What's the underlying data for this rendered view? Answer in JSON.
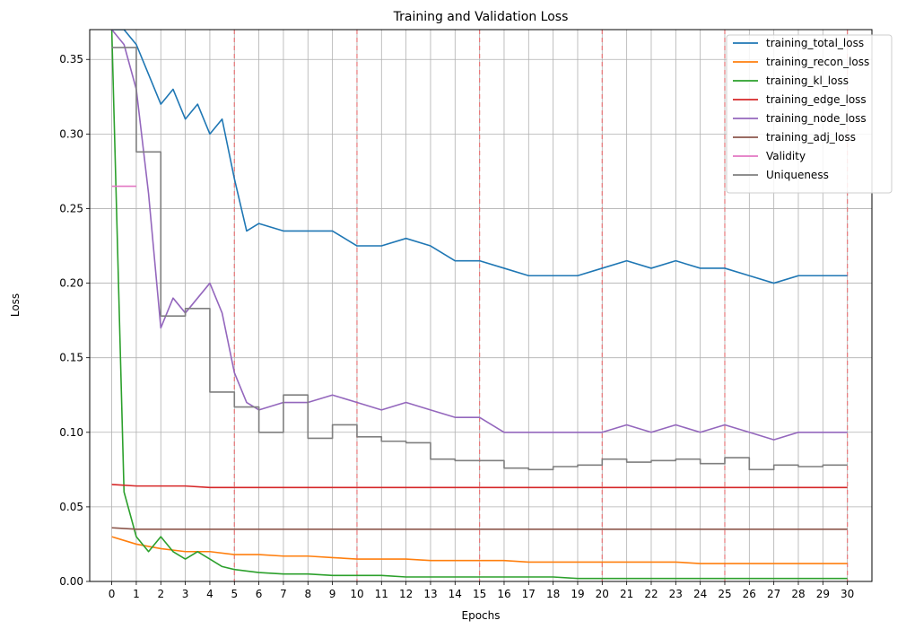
{
  "chart_data": {
    "type": "line",
    "title": "Training and Validation Loss",
    "xlabel": "Epochs",
    "ylabel": "Loss",
    "xlim": [
      -0.9,
      31.0
    ],
    "ylim": [
      0.0,
      0.37
    ],
    "x_ticks": [
      0,
      1,
      2,
      3,
      4,
      5,
      6,
      7,
      8,
      9,
      10,
      11,
      12,
      13,
      14,
      15,
      16,
      17,
      18,
      19,
      20,
      21,
      22,
      23,
      24,
      25,
      26,
      27,
      28,
      29,
      30
    ],
    "y_ticks": [
      0.0,
      0.05,
      0.1,
      0.15,
      0.2,
      0.25,
      0.3,
      0.35
    ],
    "y_tick_labels": [
      "0.00",
      "0.05",
      "0.10",
      "0.15",
      "0.20",
      "0.25",
      "0.30",
      "0.35"
    ],
    "grid": true,
    "legend_position": "top-right",
    "epoch_markers": [
      5,
      10,
      15,
      20,
      25,
      30
    ],
    "series": [
      {
        "name": "training_total_loss",
        "color": "#1f77b4",
        "x": [
          0.0,
          0.5,
          1.0,
          1.5,
          2.0,
          2.5,
          3.0,
          3.5,
          4.0,
          4.5,
          5.0,
          5.5,
          6.0,
          7.0,
          8.0,
          9.0,
          10.0,
          11.0,
          12.0,
          13.0,
          14.0,
          15.0,
          16.0,
          17.0,
          18.0,
          19.0,
          20.0,
          21.0,
          22.0,
          23.0,
          24.0,
          25.0,
          26.0,
          27.0,
          28.0,
          29.0,
          30.0
        ],
        "y": [
          0.37,
          0.37,
          0.36,
          0.34,
          0.32,
          0.33,
          0.31,
          0.32,
          0.3,
          0.31,
          0.27,
          0.235,
          0.24,
          0.235,
          0.235,
          0.235,
          0.225,
          0.225,
          0.23,
          0.225,
          0.215,
          0.215,
          0.21,
          0.205,
          0.205,
          0.205,
          0.21,
          0.215,
          0.21,
          0.215,
          0.21,
          0.21,
          0.205,
          0.2,
          0.205,
          0.205,
          0.205
        ]
      },
      {
        "name": "training_recon_loss",
        "color": "#ff7f0e",
        "x": [
          0.0,
          1.0,
          2.0,
          3.0,
          4.0,
          5.0,
          6.0,
          7.0,
          8.0,
          9.0,
          10.0,
          11.0,
          12.0,
          13.0,
          14.0,
          15.0,
          16.0,
          17.0,
          18.0,
          19.0,
          20.0,
          21.0,
          22.0,
          23.0,
          24.0,
          25.0,
          26.0,
          27.0,
          28.0,
          29.0,
          30.0
        ],
        "y": [
          0.03,
          0.025,
          0.022,
          0.02,
          0.02,
          0.018,
          0.018,
          0.017,
          0.017,
          0.016,
          0.015,
          0.015,
          0.015,
          0.014,
          0.014,
          0.014,
          0.014,
          0.013,
          0.013,
          0.013,
          0.013,
          0.013,
          0.013,
          0.013,
          0.012,
          0.012,
          0.012,
          0.012,
          0.012,
          0.012,
          0.012
        ]
      },
      {
        "name": "training_kl_loss",
        "color": "#2ca02c",
        "x": [
          0.0,
          0.5,
          1.0,
          1.5,
          2.0,
          2.5,
          3.0,
          3.5,
          4.0,
          4.5,
          5.0,
          6.0,
          7.0,
          8.0,
          9.0,
          10.0,
          11.0,
          12.0,
          13.0,
          14.0,
          15.0,
          16.0,
          17.0,
          18.0,
          19.0,
          20.0,
          21.0,
          22.0,
          23.0,
          24.0,
          25.0,
          26.0,
          27.0,
          28.0,
          29.0,
          30.0
        ],
        "y": [
          0.37,
          0.06,
          0.03,
          0.02,
          0.03,
          0.02,
          0.015,
          0.02,
          0.015,
          0.01,
          0.008,
          0.006,
          0.005,
          0.005,
          0.004,
          0.004,
          0.004,
          0.003,
          0.003,
          0.003,
          0.003,
          0.003,
          0.003,
          0.003,
          0.002,
          0.002,
          0.002,
          0.002,
          0.002,
          0.002,
          0.002,
          0.002,
          0.002,
          0.002,
          0.002,
          0.002
        ]
      },
      {
        "name": "training_edge_loss",
        "color": "#d62728",
        "x": [
          0.0,
          1.0,
          2.0,
          3.0,
          4.0,
          5.0,
          6.0,
          7.0,
          8.0,
          9.0,
          10.0,
          11.0,
          12.0,
          13.0,
          14.0,
          15.0,
          16.0,
          17.0,
          18.0,
          19.0,
          20.0,
          21.0,
          22.0,
          23.0,
          24.0,
          25.0,
          26.0,
          27.0,
          28.0,
          29.0,
          30.0
        ],
        "y": [
          0.065,
          0.064,
          0.064,
          0.064,
          0.063,
          0.063,
          0.063,
          0.063,
          0.063,
          0.063,
          0.063,
          0.063,
          0.063,
          0.063,
          0.063,
          0.063,
          0.063,
          0.063,
          0.063,
          0.063,
          0.063,
          0.063,
          0.063,
          0.063,
          0.063,
          0.063,
          0.063,
          0.063,
          0.063,
          0.063,
          0.063
        ]
      },
      {
        "name": "training_node_loss",
        "color": "#9467bd",
        "x": [
          0.0,
          0.5,
          1.0,
          1.5,
          2.0,
          2.5,
          3.0,
          3.5,
          4.0,
          4.5,
          5.0,
          5.5,
          6.0,
          7.0,
          8.0,
          9.0,
          10.0,
          11.0,
          12.0,
          13.0,
          14.0,
          15.0,
          16.0,
          17.0,
          18.0,
          19.0,
          20.0,
          21.0,
          22.0,
          23.0,
          24.0,
          25.0,
          26.0,
          27.0,
          28.0,
          29.0,
          30.0
        ],
        "y": [
          0.37,
          0.36,
          0.33,
          0.26,
          0.17,
          0.19,
          0.18,
          0.19,
          0.2,
          0.18,
          0.14,
          0.12,
          0.115,
          0.12,
          0.12,
          0.125,
          0.12,
          0.115,
          0.12,
          0.115,
          0.11,
          0.11,
          0.1,
          0.1,
          0.1,
          0.1,
          0.1,
          0.105,
          0.1,
          0.105,
          0.1,
          0.105,
          0.1,
          0.095,
          0.1,
          0.1,
          0.1
        ]
      },
      {
        "name": "training_adj_loss",
        "color": "#8c564b",
        "x": [
          0.0,
          1.0,
          2.0,
          3.0,
          4.0,
          5.0,
          6.0,
          7.0,
          8.0,
          9.0,
          10.0,
          11.0,
          12.0,
          13.0,
          14.0,
          15.0,
          16.0,
          17.0,
          18.0,
          19.0,
          20.0,
          21.0,
          22.0,
          23.0,
          24.0,
          25.0,
          26.0,
          27.0,
          28.0,
          29.0,
          30.0
        ],
        "y": [
          0.036,
          0.035,
          0.035,
          0.035,
          0.035,
          0.035,
          0.035,
          0.035,
          0.035,
          0.035,
          0.035,
          0.035,
          0.035,
          0.035,
          0.035,
          0.035,
          0.035,
          0.035,
          0.035,
          0.035,
          0.035,
          0.035,
          0.035,
          0.035,
          0.035,
          0.035,
          0.035,
          0.035,
          0.035,
          0.035,
          0.035
        ]
      },
      {
        "name": "Validity",
        "color": "#e377c2",
        "x": [
          0.0,
          0.5,
          0.5,
          1.0
        ],
        "y": [
          0.265,
          0.265,
          0.265,
          0.265
        ]
      },
      {
        "name": "Uniqueness",
        "color": "#7f7f7f",
        "x": [
          0.0,
          0.5,
          0.5,
          1.0,
          1.0,
          2.0,
          2.0,
          3.0,
          3.0,
          4.0,
          4.0,
          5.0,
          5.0,
          6.0,
          6.0,
          7.0,
          7.0,
          8.0,
          8.0,
          9.0,
          9.0,
          10.0,
          10.0,
          11.0,
          11.0,
          12.0,
          12.0,
          13.0,
          13.0,
          14.0,
          14.0,
          15.0,
          15.0,
          16.0,
          16.0,
          17.0,
          17.0,
          18.0,
          18.0,
          19.0,
          19.0,
          20.0,
          20.0,
          21.0,
          21.0,
          22.0,
          22.0,
          23.0,
          23.0,
          24.0,
          24.0,
          25.0,
          25.0,
          26.0,
          26.0,
          27.0,
          27.0,
          28.0,
          28.0,
          29.0,
          29.0,
          30.0
        ],
        "y": [
          0.358,
          0.358,
          0.358,
          0.358,
          0.288,
          0.288,
          0.178,
          0.178,
          0.183,
          0.183,
          0.127,
          0.127,
          0.117,
          0.117,
          0.1,
          0.1,
          0.125,
          0.125,
          0.096,
          0.096,
          0.105,
          0.105,
          0.097,
          0.097,
          0.094,
          0.094,
          0.093,
          0.093,
          0.082,
          0.082,
          0.081,
          0.081,
          0.081,
          0.081,
          0.076,
          0.076,
          0.075,
          0.075,
          0.077,
          0.077,
          0.078,
          0.078,
          0.082,
          0.082,
          0.08,
          0.08,
          0.081,
          0.081,
          0.082,
          0.082,
          0.079,
          0.079,
          0.083,
          0.083,
          0.075,
          0.075,
          0.078,
          0.078,
          0.077,
          0.077,
          0.078,
          0.078
        ]
      }
    ]
  }
}
